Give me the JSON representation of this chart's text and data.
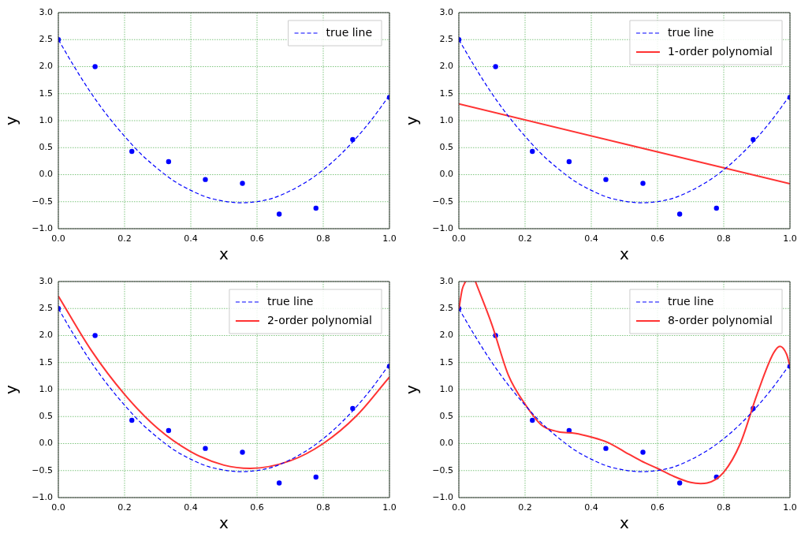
{
  "chart_data": [
    {
      "type": "line",
      "xlabel": "x",
      "ylabel": "y",
      "xlim": [
        0,
        1
      ],
      "ylim": [
        -1,
        3
      ],
      "grid": true,
      "legend": "top right",
      "xticks": [
        {
          "value": 0,
          "label": "0.0"
        },
        {
          "value": 0.2,
          "label": "0.2"
        },
        {
          "value": 0.4,
          "label": "0.4"
        },
        {
          "value": 0.6,
          "label": "0.6"
        },
        {
          "value": 0.8,
          "label": "0.8"
        },
        {
          "value": 1,
          "label": "1.0"
        }
      ],
      "yticks": [
        {
          "value": -1,
          "label": "−1.0"
        },
        {
          "value": -0.5,
          "label": "−0.5"
        },
        {
          "value": 0,
          "label": "0.0"
        },
        {
          "value": 0.5,
          "label": "0.5"
        },
        {
          "value": 1,
          "label": "1.0"
        },
        {
          "value": 1.5,
          "label": "1.5"
        },
        {
          "value": 2,
          "label": "2.0"
        },
        {
          "value": 2.5,
          "label": "2.5"
        },
        {
          "value": 3,
          "label": "3.0"
        }
      ],
      "series": [
        {
          "type": "scatter",
          "marker": "circle",
          "color": "#0000ff",
          "x": [
            0,
            0.111,
            0.222,
            0.333,
            0.444,
            0.556,
            0.667,
            0.778,
            0.889,
            1
          ],
          "values": [
            2.5,
            2.0,
            0.43,
            0.24,
            -0.09,
            -0.16,
            -0.73,
            -0.62,
            0.65,
            1.43
          ]
        },
        {
          "type": "line",
          "name": "true line",
          "line_style": "dashed",
          "color": "#0000ff",
          "x": [
            0,
            0.05,
            0.1,
            0.15,
            0.2,
            0.25,
            0.3,
            0.35,
            0.4,
            0.45,
            0.5,
            0.55,
            0.6,
            0.65,
            0.7,
            0.75,
            0.8,
            0.85,
            0.9,
            0.95,
            1
          ],
          "values": [
            2.5,
            1.98,
            1.5,
            1.08,
            0.71,
            0.38,
            0.11,
            -0.12,
            -0.29,
            -0.42,
            -0.49,
            -0.52,
            -0.5,
            -0.43,
            -0.3,
            -0.13,
            0.09,
            0.36,
            0.68,
            1.05,
            1.47
          ]
        }
      ]
    },
    {
      "type": "line",
      "xlabel": "x",
      "ylabel": "y",
      "xlim": [
        0,
        1
      ],
      "ylim": [
        -1,
        3
      ],
      "grid": true,
      "legend": "top right",
      "xticks": [
        {
          "value": 0,
          "label": "0.0"
        },
        {
          "value": 0.2,
          "label": "0.2"
        },
        {
          "value": 0.4,
          "label": "0.4"
        },
        {
          "value": 0.6,
          "label": "0.6"
        },
        {
          "value": 0.8,
          "label": "0.8"
        },
        {
          "value": 1,
          "label": "1.0"
        }
      ],
      "yticks": [
        {
          "value": -1,
          "label": "−1.0"
        },
        {
          "value": -0.5,
          "label": "−0.5"
        },
        {
          "value": 0,
          "label": "0.0"
        },
        {
          "value": 0.5,
          "label": "0.5"
        },
        {
          "value": 1,
          "label": "1.0"
        },
        {
          "value": 1.5,
          "label": "1.5"
        },
        {
          "value": 2,
          "label": "2.0"
        },
        {
          "value": 2.5,
          "label": "2.5"
        },
        {
          "value": 3,
          "label": "3.0"
        }
      ],
      "series": [
        {
          "type": "scatter",
          "marker": "circle",
          "color": "#0000ff",
          "x": [
            0,
            0.111,
            0.222,
            0.333,
            0.444,
            0.556,
            0.667,
            0.778,
            0.889,
            1
          ],
          "values": [
            2.5,
            2.0,
            0.43,
            0.24,
            -0.09,
            -0.16,
            -0.73,
            -0.62,
            0.65,
            1.43
          ]
        },
        {
          "type": "line",
          "name": "true line",
          "line_style": "dashed",
          "color": "#0000ff",
          "x": [
            0,
            0.05,
            0.1,
            0.15,
            0.2,
            0.25,
            0.3,
            0.35,
            0.4,
            0.45,
            0.5,
            0.55,
            0.6,
            0.65,
            0.7,
            0.75,
            0.8,
            0.85,
            0.9,
            0.95,
            1
          ],
          "values": [
            2.5,
            1.98,
            1.5,
            1.08,
            0.71,
            0.38,
            0.11,
            -0.12,
            -0.29,
            -0.42,
            -0.49,
            -0.52,
            -0.5,
            -0.43,
            -0.3,
            -0.13,
            0.09,
            0.36,
            0.68,
            1.05,
            1.47
          ]
        },
        {
          "type": "line",
          "name": "1-order polynomial",
          "line_style": "solid",
          "color": "#ff3333",
          "x": [
            0,
            1
          ],
          "values": [
            1.31,
            -0.17
          ]
        }
      ]
    },
    {
      "type": "line",
      "xlabel": "x",
      "ylabel": "y",
      "xlim": [
        0,
        1
      ],
      "ylim": [
        -1,
        3
      ],
      "grid": true,
      "legend": "top right",
      "xticks": [
        {
          "value": 0,
          "label": "0.0"
        },
        {
          "value": 0.2,
          "label": "0.2"
        },
        {
          "value": 0.4,
          "label": "0.4"
        },
        {
          "value": 0.6,
          "label": "0.6"
        },
        {
          "value": 0.8,
          "label": "0.8"
        },
        {
          "value": 1,
          "label": "1.0"
        }
      ],
      "yticks": [
        {
          "value": -1,
          "label": "−1.0"
        },
        {
          "value": -0.5,
          "label": "−0.5"
        },
        {
          "value": 0,
          "label": "0.0"
        },
        {
          "value": 0.5,
          "label": "0.5"
        },
        {
          "value": 1,
          "label": "1.0"
        },
        {
          "value": 1.5,
          "label": "1.5"
        },
        {
          "value": 2,
          "label": "2.0"
        },
        {
          "value": 2.5,
          "label": "2.5"
        },
        {
          "value": 3,
          "label": "3.0"
        }
      ],
      "series": [
        {
          "type": "scatter",
          "marker": "circle",
          "color": "#0000ff",
          "x": [
            0,
            0.111,
            0.222,
            0.333,
            0.444,
            0.556,
            0.667,
            0.778,
            0.889,
            1
          ],
          "values": [
            2.5,
            2.0,
            0.43,
            0.24,
            -0.09,
            -0.16,
            -0.73,
            -0.62,
            0.65,
            1.43
          ]
        },
        {
          "type": "line",
          "name": "true line",
          "line_style": "dashed",
          "color": "#0000ff",
          "x": [
            0,
            0.05,
            0.1,
            0.15,
            0.2,
            0.25,
            0.3,
            0.35,
            0.4,
            0.45,
            0.5,
            0.55,
            0.6,
            0.65,
            0.7,
            0.75,
            0.8,
            0.85,
            0.9,
            0.95,
            1
          ],
          "values": [
            2.5,
            1.98,
            1.5,
            1.08,
            0.71,
            0.38,
            0.11,
            -0.12,
            -0.29,
            -0.42,
            -0.49,
            -0.52,
            -0.5,
            -0.43,
            -0.3,
            -0.13,
            0.09,
            0.36,
            0.68,
            1.05,
            1.47
          ]
        },
        {
          "type": "line",
          "name": "2-order polynomial",
          "line_style": "solid",
          "color": "#ff3333",
          "x": [
            0,
            0.1,
            0.2,
            0.3,
            0.4,
            0.5,
            0.58,
            0.7,
            0.8,
            0.9,
            1
          ],
          "values": [
            2.73,
            1.72,
            0.91,
            0.28,
            -0.15,
            -0.4,
            -0.46,
            -0.32,
            0.0,
            0.51,
            1.23
          ]
        }
      ]
    },
    {
      "type": "line",
      "xlabel": "x",
      "ylabel": "y",
      "xlim": [
        0,
        1
      ],
      "ylim": [
        -1,
        3
      ],
      "grid": true,
      "legend": "top right",
      "xticks": [
        {
          "value": 0,
          "label": "0.0"
        },
        {
          "value": 0.2,
          "label": "0.2"
        },
        {
          "value": 0.4,
          "label": "0.4"
        },
        {
          "value": 0.6,
          "label": "0.6"
        },
        {
          "value": 0.8,
          "label": "0.8"
        },
        {
          "value": 1,
          "label": "1.0"
        }
      ],
      "yticks": [
        {
          "value": -1,
          "label": "−1.0"
        },
        {
          "value": -0.5,
          "label": "−0.5"
        },
        {
          "value": 0,
          "label": "0.0"
        },
        {
          "value": 0.5,
          "label": "0.5"
        },
        {
          "value": 1,
          "label": "1.0"
        },
        {
          "value": 1.5,
          "label": "1.5"
        },
        {
          "value": 2,
          "label": "2.0"
        },
        {
          "value": 2.5,
          "label": "2.5"
        },
        {
          "value": 3,
          "label": "3.0"
        }
      ],
      "series": [
        {
          "type": "scatter",
          "marker": "circle",
          "color": "#0000ff",
          "x": [
            0,
            0.111,
            0.222,
            0.333,
            0.444,
            0.556,
            0.667,
            0.778,
            0.889,
            1
          ],
          "values": [
            2.5,
            2.0,
            0.43,
            0.24,
            -0.09,
            -0.16,
            -0.73,
            -0.62,
            0.65,
            1.43
          ]
        },
        {
          "type": "line",
          "name": "true line",
          "line_style": "dashed",
          "color": "#0000ff",
          "x": [
            0,
            0.05,
            0.1,
            0.15,
            0.2,
            0.25,
            0.3,
            0.35,
            0.4,
            0.45,
            0.5,
            0.55,
            0.6,
            0.65,
            0.7,
            0.75,
            0.8,
            0.85,
            0.9,
            0.95,
            1
          ],
          "values": [
            2.5,
            1.98,
            1.5,
            1.08,
            0.71,
            0.38,
            0.11,
            -0.12,
            -0.29,
            -0.42,
            -0.49,
            -0.52,
            -0.5,
            -0.43,
            -0.3,
            -0.13,
            0.09,
            0.36,
            0.68,
            1.05,
            1.47
          ]
        },
        {
          "type": "line",
          "name": "8-order polynomial",
          "line_style": "solid",
          "color": "#ff3333",
          "x": [
            0,
            0.01,
            0.02,
            0.035,
            0.05,
            0.1,
            0.15,
            0.2,
            0.25,
            0.3,
            0.35,
            0.4,
            0.45,
            0.5,
            0.55,
            0.6,
            0.65,
            0.7,
            0.73,
            0.75,
            0.8,
            0.85,
            0.9,
            0.95,
            0.97,
            0.99,
            1
          ],
          "values": [
            2.48,
            2.85,
            3.0,
            null,
            3.0,
            2.2,
            1.26,
            0.73,
            0.34,
            0.22,
            0.19,
            0.12,
            0.02,
            -0.15,
            -0.32,
            -0.46,
            -0.61,
            -0.72,
            -0.74,
            -0.73,
            -0.53,
            0.0,
            0.9,
            1.67,
            1.8,
            1.65,
            1.43
          ]
        }
      ]
    }
  ]
}
